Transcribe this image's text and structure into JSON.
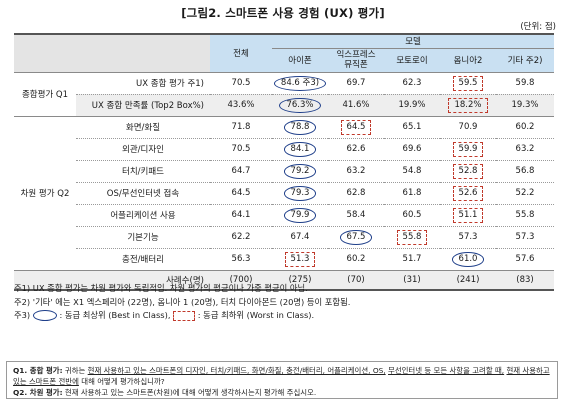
{
  "title": "[그림2. 스마트폰 사용 경험 (UX) 평가]",
  "unit": "(단위: 점)",
  "header": {
    "total": "전체",
    "model": "모델",
    "models": [
      "아이폰",
      "익스프레스\n뮤직폰",
      "모토로이",
      "옴니아2",
      "기타 주2)"
    ]
  },
  "groups": {
    "overall": "종합평가 Q1",
    "detail": "차원 평가 Q2"
  },
  "rows": [
    {
      "metric": "UX 종합 평가 주1)",
      "values": [
        "70.5",
        "84.6 주3)",
        "69.7",
        "62.3",
        "59.5",
        "59.8"
      ],
      "best": 1,
      "worst": 4
    },
    {
      "metric": "UX 종합 만족률 (Top2 Box%)",
      "values": [
        "43.6%",
        "76.3%",
        "41.6%",
        "19.9%",
        "18.2%",
        "19.3%"
      ],
      "best": 1,
      "worst": 4
    },
    {
      "metric": "화면/화질",
      "values": [
        "71.8",
        "78.8",
        "64.5",
        "65.1",
        "70.9",
        "60.2"
      ],
      "best": 1,
      "worst": 2
    },
    {
      "metric": "외관/디자인",
      "values": [
        "70.5",
        "84.1",
        "62.6",
        "69.6",
        "59.9",
        "63.2"
      ],
      "best": 1,
      "worst": 4
    },
    {
      "metric": "터치/키패드",
      "values": [
        "64.7",
        "79.2",
        "63.2",
        "54.8",
        "52.8",
        "56.8"
      ],
      "best": 1,
      "worst": 4
    },
    {
      "metric": "OS/무선인터넷 접속",
      "values": [
        "64.5",
        "79.3",
        "62.8",
        "61.8",
        "52.6",
        "52.2"
      ],
      "best": 1,
      "worst": 4
    },
    {
      "metric": "어플리케이션 사용",
      "values": [
        "64.1",
        "79.9",
        "58.4",
        "60.5",
        "51.1",
        "55.8"
      ],
      "best": 1,
      "worst": 4
    },
    {
      "metric": "기본기능",
      "values": [
        "62.2",
        "67.4",
        "67.5",
        "55.8",
        "57.3",
        "57.3"
      ],
      "best": 2,
      "worst": 3
    },
    {
      "metric": "충전/배터리",
      "values": [
        "56.3",
        "51.3",
        "60.2",
        "51.7",
        "61.0",
        "57.6"
      ],
      "best": 4,
      "worst": 1
    }
  ],
  "sample": {
    "label": "사례수(명)",
    "values": [
      "(700)",
      "(275)",
      "(70)",
      "(31)",
      "(241)",
      "(83)"
    ]
  },
  "notes": {
    "n1": "주1) UX 종합 평가는 차원 평가와 독립적임. 차원 평가의 평균이나 가중 평균이 아님.",
    "n2": "주2) '기타' 에는 X1 엑스페리아 (22명), 옴니아 1 (20명), 터치 다이아몬드 (20명) 등이 포함됨.",
    "n3_prefix": "주3)",
    "n3_best": ": 동급 최상위 (Best in Class),",
    "n3_worst": ": 동급 최하위 (Worst in Class)."
  },
  "questions": {
    "q1_label": "Q1. 종합 평가:",
    "q1_a": "귀하는",
    "q1_b": "현재 사용하고 있는 스마트폰의 디자인, 터치/키패드, 화면/화질, 충전/배터리, 어플리케이션, OS,",
    "q1_c": "무선인터넷 등 모든 사항을 고려할 때,",
    "q1_d": "현재 사용하고 있는 스마트폰 전반에",
    "q1_e": "대해 어떻게 평가하십니까?",
    "q2_label": "Q2. 차원 평가:",
    "q2_text": "현재 사용하고 있는 스마트폰(차원)에 대해 어떻게 생각하시는지 평가해 주십시오."
  }
}
